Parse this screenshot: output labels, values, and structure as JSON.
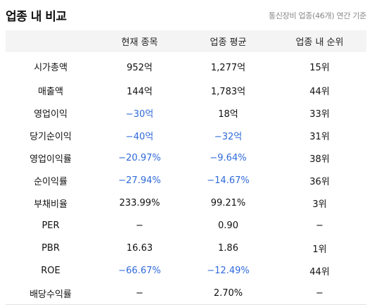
{
  "header": {
    "title": "업종 내 비교",
    "basis": "통신장비 업종(46개) 연간 기준"
  },
  "table": {
    "columns": [
      "",
      "현재 종목",
      "업종 평균",
      "업종 내 순위"
    ],
    "rows": [
      {
        "label": "시가총액",
        "current": "952억",
        "average": "1,277억",
        "rank": "15위",
        "current_negative": false,
        "average_negative": false
      },
      {
        "label": "매출액",
        "current": "144억",
        "average": "1,783억",
        "rank": "44위",
        "current_negative": false,
        "average_negative": false
      },
      {
        "label": "영업이익",
        "current": "−30억",
        "average": "18억",
        "rank": "33위",
        "current_negative": true,
        "average_negative": false
      },
      {
        "label": "당기순이익",
        "current": "−40억",
        "average": "−32억",
        "rank": "31위",
        "current_negative": true,
        "average_negative": true
      },
      {
        "label": "영업이익률",
        "current": "−20.97%",
        "average": "−9.64%",
        "rank": "38위",
        "current_negative": true,
        "average_negative": true
      },
      {
        "label": "순이익률",
        "current": "−27.94%",
        "average": "−14.67%",
        "rank": "36위",
        "current_negative": true,
        "average_negative": true
      },
      {
        "label": "부채비율",
        "current": "233.99%",
        "average": "99.21%",
        "rank": "3위",
        "current_negative": false,
        "average_negative": false
      },
      {
        "label": "PER",
        "current": "−",
        "average": "0.90",
        "rank": "−",
        "current_negative": false,
        "average_negative": false
      },
      {
        "label": "PBR",
        "current": "16.63",
        "average": "1.86",
        "rank": "1위",
        "current_negative": false,
        "average_negative": false
      },
      {
        "label": "ROE",
        "current": "−66.67%",
        "average": "−12.49%",
        "rank": "44위",
        "current_negative": true,
        "average_negative": true
      },
      {
        "label": "배당수익률",
        "current": "−",
        "average": "2.70%",
        "rank": "−",
        "current_negative": false,
        "average_negative": false
      }
    ]
  },
  "colors": {
    "negative": "#2f6ad9",
    "header_bg": "#f4f4f4",
    "muted_text": "#888888"
  }
}
